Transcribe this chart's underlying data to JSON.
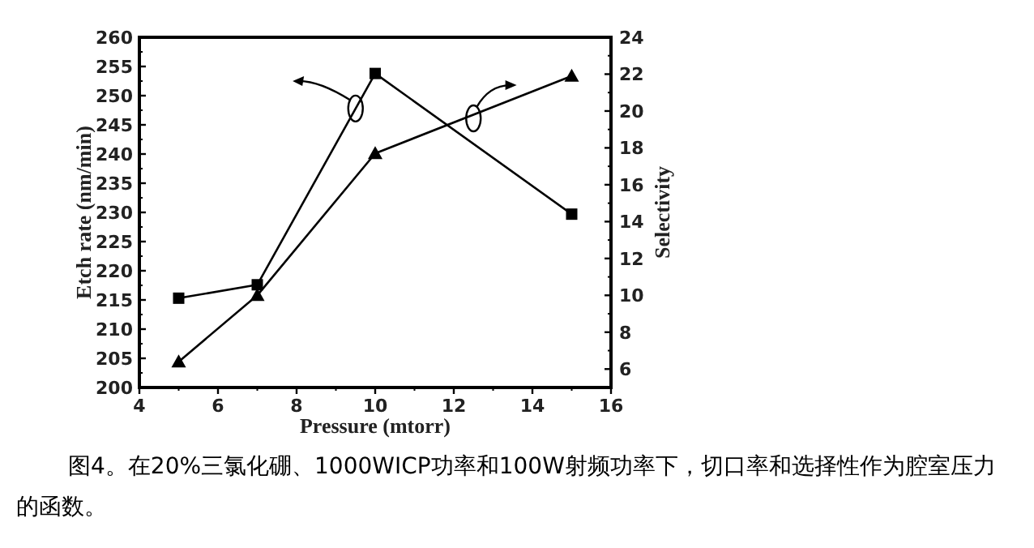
{
  "chart_data": {
    "type": "line",
    "xlabel": "Pressure (mtorr)",
    "ylabel": "Etch rate (nm/min)",
    "y2label": "Selectivity",
    "x": [
      5,
      7,
      10,
      15
    ],
    "series": [
      {
        "color": "#000000",
        "marker": "square",
        "values": [
          215.3,
          217.6,
          253.8,
          229.7
        ]
      },
      {
        "color": "#000000",
        "marker": "triangle",
        "axis": "y2",
        "values": [
          6.4,
          10,
          17.7,
          21.9
        ]
      }
    ],
    "xlim": [
      4,
      16
    ],
    "xticks": [
      4,
      6,
      8,
      10,
      12,
      14,
      16
    ],
    "ylim": [
      200,
      260
    ],
    "yticks": [
      200,
      205,
      210,
      215,
      220,
      225,
      230,
      235,
      240,
      245,
      250,
      255,
      260
    ],
    "y2lim": [
      5,
      24
    ],
    "y2ticks": [
      6,
      8,
      10,
      12,
      14,
      16,
      18,
      20,
      22,
      24
    ],
    "line_style": "solid",
    "annotations": [
      "图4。在20%三氯化硼、1000WICP功率和100W射频功率下，切口率和选择性作为腔室压力的函数。"
    ]
  }
}
